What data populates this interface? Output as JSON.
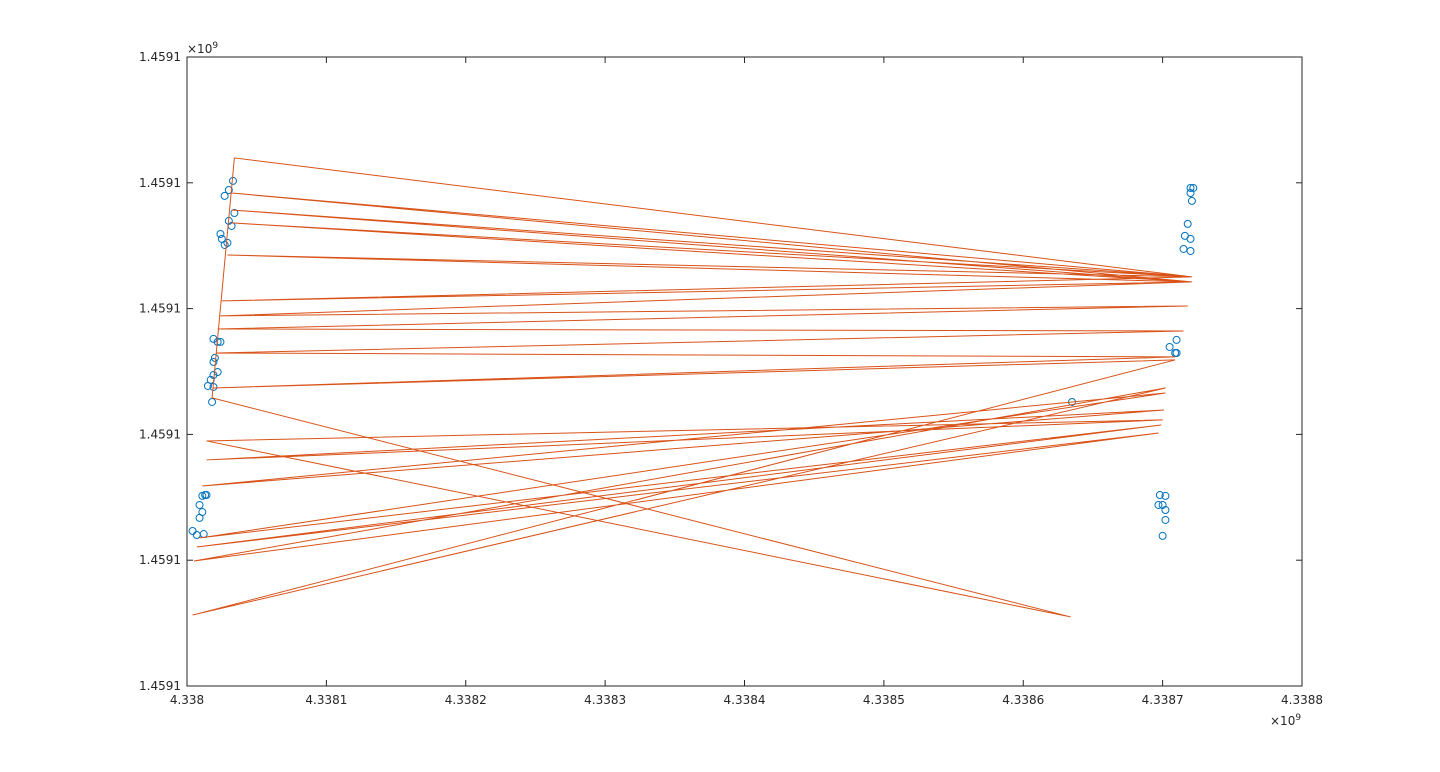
{
  "chart_data": {
    "type": "scatter",
    "xlim": [
      4.338,
      4.3388
    ],
    "xticks": [
      4.338,
      4.3381,
      4.3382,
      4.3383,
      4.3384,
      4.3385,
      4.3386,
      4.3387,
      4.3388
    ],
    "ylim": [
      1.45908,
      1.45913
    ],
    "yticks": [
      {
        "value": 1.45908,
        "label": "1.4591"
      },
      {
        "value": 1.45909,
        "label": "1.4591"
      },
      {
        "value": 1.4591,
        "label": "1.4591"
      },
      {
        "value": 1.45911,
        "label": "1.4591"
      },
      {
        "value": 1.45912,
        "label": "1.4591"
      },
      {
        "value": 1.45913,
        "label": "1.4591"
      }
    ],
    "x_multiplier": {
      "base": "×10",
      "power": "9"
    },
    "y_multiplier": {
      "base": "×10",
      "power": "9"
    },
    "series": [
      {
        "type": "scatter",
        "color": "#0072bd",
        "x": [
          4.338033,
          4.33803,
          4.338027,
          4.338034,
          4.33803,
          4.338032,
          4.338024,
          4.338025,
          4.338029,
          4.338027,
          4.338019,
          4.338022,
          4.338024,
          4.33802,
          4.338019,
          4.338022,
          4.338019,
          4.338017,
          4.338015,
          4.338019,
          4.338018,
          4.338013,
          4.338011,
          4.338014,
          4.338009,
          4.338011,
          4.338009,
          4.338004,
          4.338007,
          4.338012,
          4.33872,
          4.338722,
          4.33872,
          4.338721,
          4.338718,
          4.338716,
          4.33872,
          4.338715,
          4.33872,
          4.33871,
          4.338705,
          4.338709,
          4.33871,
          4.338635,
          4.338698,
          4.338702,
          4.338697,
          4.3387,
          4.338702,
          4.338702,
          4.3387
        ],
        "values": [
          1.45912015,
          1.45911943,
          1.45911896,
          1.4591176,
          1.45911697,
          1.45911657,
          1.45911593,
          1.45911554,
          1.45911522,
          1.45911506,
          1.45910759,
          1.45910735,
          1.45910735,
          1.45910608,
          1.45910576,
          1.45910496,
          1.45910472,
          1.45910433,
          1.45910385,
          1.45910377,
          1.45910258,
          1.45909518,
          1.45909511,
          1.45909518,
          1.45909439,
          1.45909383,
          1.45909336,
          1.45909232,
          1.459092,
          1.45909208,
          1.45911959,
          1.45911959,
          1.45911919,
          1.45911856,
          1.45911673,
          1.45911578,
          1.45911554,
          1.45911474,
          1.45911458,
          1.45910751,
          1.45910695,
          1.45910647,
          1.45910647,
          1.45910258,
          1.45909518,
          1.45909511,
          1.45909439,
          1.45909439,
          1.45909399,
          1.4590932,
          1.45909193
        ]
      },
      {
        "type": "line",
        "color": "#d95319",
        "x": [
          4.338634,
          4.338014,
          4.3387,
          4.338014,
          4.338701,
          4.338011,
          4.338702,
          4.338009,
          4.338699,
          4.338007,
          4.338697,
          4.338005,
          4.338702,
          4.338004,
          4.338709,
          4.338019,
          4.338709,
          4.338021,
          4.338715,
          4.338022,
          4.338718,
          4.338024,
          4.338721,
          4.338025,
          4.338721,
          4.338029,
          4.338721,
          4.338032,
          4.338721,
          4.338032,
          4.338721,
          4.338032,
          4.338721,
          4.338034,
          4.338018,
          4.338634
        ],
        "values": [
          1.45908549,
          1.45909948,
          1.45910115,
          1.45909797,
          1.45910194,
          1.4590959,
          1.45910329,
          1.45909177,
          1.45910075,
          1.45909105,
          1.45910011,
          1.45908994,
          1.45910369,
          1.45908564,
          1.45910592,
          1.45910369,
          1.45910616,
          1.45910647,
          1.45910822,
          1.45910838,
          1.45911021,
          1.45910942,
          1.45911212,
          1.45911061,
          1.45911252,
          1.45911426,
          1.45911212,
          1.45911681,
          1.45911252,
          1.45911784,
          1.45911212,
          1.45911919,
          1.45911252,
          1.45912198,
          1.4591029,
          1.45908549
        ]
      }
    ]
  }
}
